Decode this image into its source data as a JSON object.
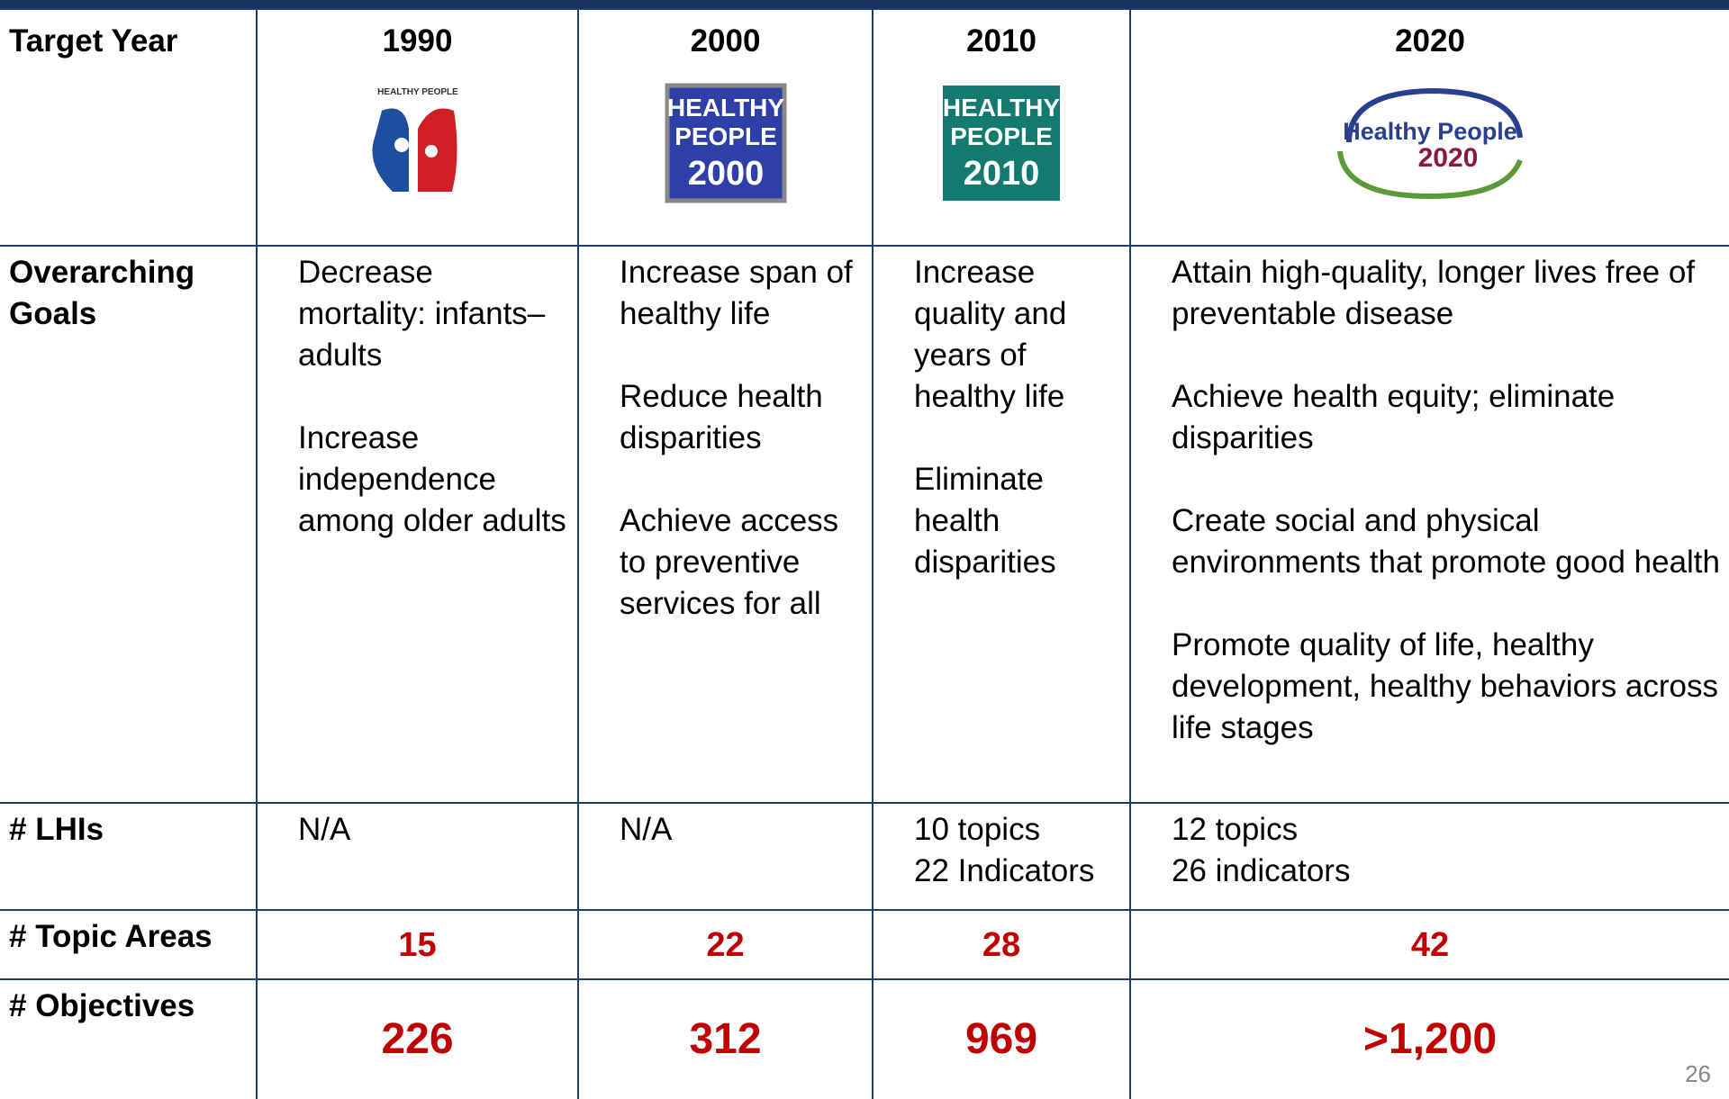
{
  "table": {
    "header": [
      "Target Year",
      "1990",
      "2000",
      "2010",
      "2020"
    ],
    "logos": [
      {
        "line1": "HEALTHY PEOPLE"
      },
      {
        "line1": "HEALTHY",
        "line2": "PEOPLE",
        "line3": "2000"
      },
      {
        "line1": "HEALTHY",
        "line2": "PEOPLE",
        "line3": "2010"
      },
      {
        "line1": "Healthy People",
        "line2": "2020"
      }
    ],
    "rows": [
      {
        "label": "Overarching Goals",
        "cells": [
          [
            "Decrease mortality: infants–adults",
            "Increase independence among older adults"
          ],
          [
            "Increase span of healthy life",
            "Reduce health disparities",
            "Achieve access to preventive services for all"
          ],
          [
            "Increase quality and years of healthy life",
            "Eliminate health disparities"
          ],
          [
            "Attain high-quality, longer lives free of preventable disease",
            "Achieve health equity; eliminate disparities",
            "Create social and physical environments that promote good health",
            "Promote quality of life, healthy development, healthy behaviors across life stages"
          ]
        ]
      },
      {
        "label": "# LHIs",
        "cells": [
          [
            "N/A"
          ],
          [
            "N/A"
          ],
          [
            "10 topics",
            "22 Indicators"
          ],
          [
            "12 topics",
            "26 indicators"
          ]
        ]
      },
      {
        "label": "# Topic Areas",
        "cells": [
          15,
          22,
          28,
          42
        ]
      },
      {
        "label": "# Objectives",
        "cells": [
          226,
          312,
          969,
          ">1,200"
        ]
      }
    ],
    "page_number": "26"
  }
}
